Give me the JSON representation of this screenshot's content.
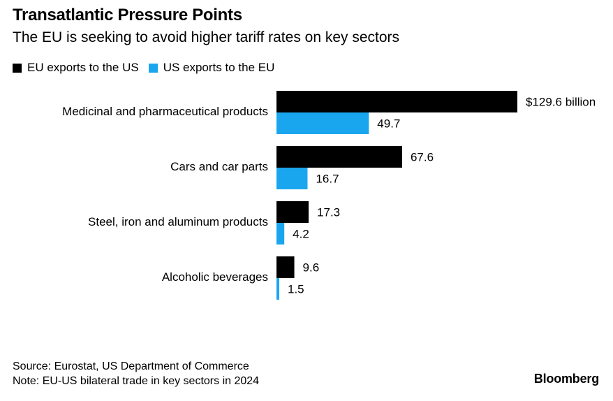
{
  "header": {
    "title": "Transatlantic Pressure Points",
    "subtitle": "The EU is seeking to avoid higher tariff rates on key sectors"
  },
  "colors": {
    "eu": "#000000",
    "us": "#1aa6ee"
  },
  "chart_data": {
    "type": "bar",
    "orientation": "horizontal",
    "categories": [
      "Medicinal and pharmaceutical products",
      "Cars and car parts",
      "Steel, iron and aluminum products",
      "Alcoholic beverages"
    ],
    "series": [
      {
        "name": "EU exports to the US",
        "values": [
          129.6,
          67.6,
          17.3,
          9.6
        ],
        "labels": [
          "$129.6 billion",
          "67.6",
          "17.3",
          "9.6"
        ]
      },
      {
        "name": "US exports to the EU",
        "values": [
          49.7,
          16.7,
          4.2,
          1.5
        ],
        "labels": [
          "49.7",
          "16.7",
          "4.2",
          "1.5"
        ]
      }
    ],
    "xlim": [
      0,
      129.6
    ],
    "grid": false,
    "legend": "top-left"
  },
  "footer": {
    "source": "Source: Eurostat, US Department of Commerce",
    "note": "Note: EU-US bilateral trade in key sectors in 2024",
    "brand": "Bloomberg"
  }
}
